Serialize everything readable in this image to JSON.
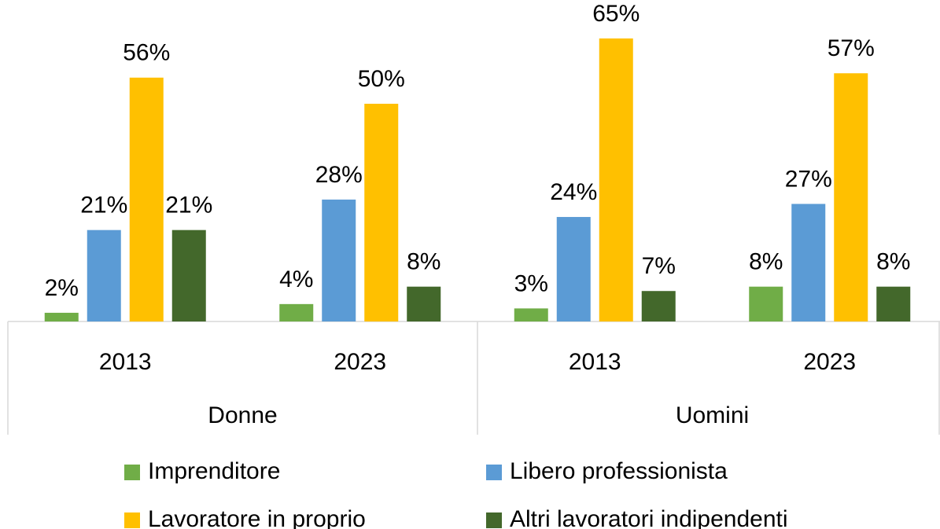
{
  "chart_data": {
    "type": "bar",
    "categories": [
      "2013",
      "2023",
      "2013",
      "2023"
    ],
    "groups": [
      {
        "name": "Donne",
        "categories": [
          "2013",
          "2023"
        ]
      },
      {
        "name": "Uomini",
        "categories": [
          "2013",
          "2023"
        ]
      }
    ],
    "series": [
      {
        "name": "Imprenditore",
        "color": "#70ad47",
        "values": [
          2,
          4,
          3,
          8
        ],
        "value_labels": [
          "2%",
          "4%",
          "3%",
          "8%"
        ]
      },
      {
        "name": "Libero professionista",
        "color": "#5b9bd5",
        "values": [
          21,
          28,
          24,
          27
        ],
        "value_labels": [
          "21%",
          "28%",
          "24%",
          "27%"
        ]
      },
      {
        "name": "Lavoratore in proprio",
        "color": "#ffc000",
        "values": [
          56,
          50,
          65,
          57
        ],
        "value_labels": [
          "56%",
          "50%",
          "65%",
          "57%"
        ]
      },
      {
        "name": "Altri lavoratori indipendenti",
        "color": "#43682b",
        "values": [
          21,
          8,
          7,
          8
        ],
        "value_labels": [
          "21%",
          "8%",
          "7%",
          "8%"
        ]
      }
    ],
    "legend": "bottom"
  }
}
